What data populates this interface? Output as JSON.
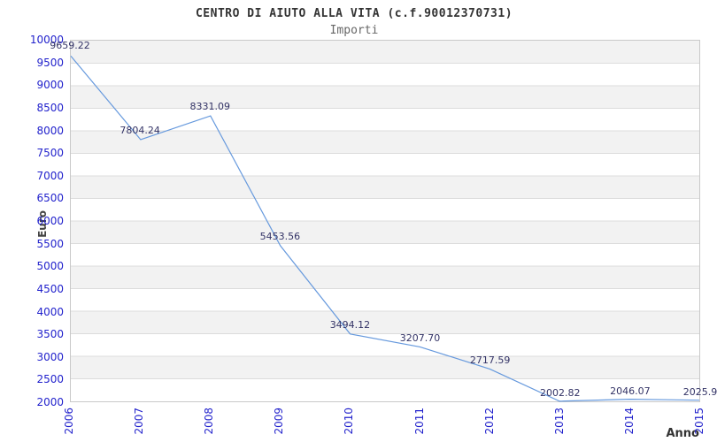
{
  "header": {
    "title": "CENTRO DI AIUTO ALLA VITA (c.f.90012370731)",
    "subtitle": "Importi"
  },
  "chart_data": {
    "type": "line",
    "title": "CENTRO DI AIUTO ALLA VITA (c.f.90012370731)",
    "subtitle": "Importi",
    "xlabel": "Anno",
    "ylabel": "Euro",
    "categories": [
      "2006",
      "2007",
      "2008",
      "2009",
      "2010",
      "2011",
      "2012",
      "2013",
      "2014",
      "2015"
    ],
    "values": [
      9659.22,
      7804.24,
      8331.09,
      5453.56,
      3494.12,
      3207.7,
      2717.59,
      2002.82,
      2046.07,
      2025.9
    ],
    "point_labels": [
      "9659.22",
      "7804.24",
      "8331.09",
      "5453.56",
      "3494.12",
      "3207.70",
      "2717.59",
      "2002.82",
      "2046.07",
      "2025.9"
    ],
    "ylim": [
      2000,
      10000
    ],
    "ytick_step": 500,
    "grid": true,
    "legend": "none",
    "colors": {
      "line": "#6699dd",
      "tick_label": "#2222cc",
      "point_label": "#333366",
      "band_dark": "#f2f2f2",
      "band_light": "#ffffff",
      "gridline": "#dcdcdc",
      "plot_border": "#c9c9c9"
    }
  }
}
